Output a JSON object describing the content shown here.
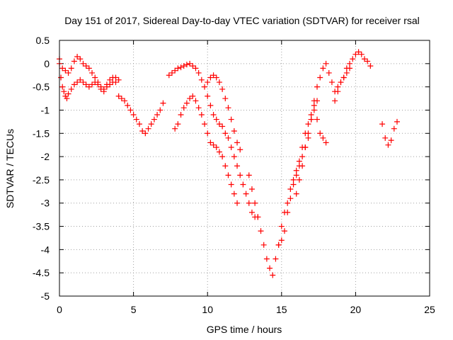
{
  "chart_data": {
    "type": "scatter",
    "title": "Day 151 of 2017, Sidereal Day-to-day VTEC variation (SDTVAR) for receiver rsal",
    "xlabel": "GPS time / hours",
    "ylabel": "SDTVAR / TECUs",
    "xlim": [
      0,
      25
    ],
    "ylim": [
      -5,
      0.5
    ],
    "xticks": [
      0,
      5,
      10,
      15,
      20,
      25
    ],
    "xtick_labels": [
      "0",
      "5",
      "10",
      "15",
      "20",
      "25"
    ],
    "yticks": [
      0.5,
      0,
      -0.5,
      -1,
      -1.5,
      -2,
      -2.5,
      -3,
      -3.5,
      -4,
      -4.5,
      -5
    ],
    "ytick_labels": [
      "0.5",
      "0",
      "-0.5",
      "-1",
      "-1.5",
      "-2",
      "-2.5",
      "-3",
      "-3.5",
      "-4",
      "-4.5",
      "-5"
    ],
    "grid": true,
    "marker": "+",
    "color": "#ff0000",
    "series": [
      {
        "x": [
          0.0,
          0.2,
          0.4,
          0.6,
          0.8,
          1.0,
          1.2,
          1.4,
          1.6,
          1.8,
          2.0,
          2.2,
          2.4,
          2.6,
          2.8,
          3.0,
          3.2,
          3.4,
          3.6,
          3.8,
          4.0,
          4.2,
          4.4,
          4.6,
          4.8,
          5.0,
          5.2,
          5.4,
          5.6,
          5.8,
          6.0,
          6.2,
          6.4,
          6.6,
          6.8,
          7.0
        ],
        "y": [
          0.1,
          -0.1,
          -0.15,
          -0.2,
          -0.1,
          0.05,
          0.15,
          0.1,
          0.0,
          -0.05,
          -0.1,
          -0.2,
          -0.3,
          -0.4,
          -0.5,
          -0.55,
          -0.45,
          -0.35,
          -0.3,
          -0.4,
          -0.7,
          -0.75,
          -0.8,
          -0.9,
          -1.0,
          -1.1,
          -1.2,
          -1.3,
          -1.45,
          -1.5,
          -1.4,
          -1.3,
          -1.2,
          -1.1,
          -1.0,
          -0.85
        ]
      },
      {
        "x": [
          0.0,
          0.1,
          0.2,
          0.3,
          0.4,
          0.5,
          0.6,
          0.8,
          1.0,
          1.2,
          1.4,
          1.6,
          1.8,
          2.0,
          2.2,
          2.4,
          2.6,
          2.8,
          3.0,
          3.2,
          3.4,
          3.6,
          3.8,
          4.0
        ],
        "y": [
          0.0,
          -0.3,
          -0.5,
          -0.6,
          -0.7,
          -0.75,
          -0.65,
          -0.55,
          -0.45,
          -0.4,
          -0.35,
          -0.4,
          -0.45,
          -0.5,
          -0.45,
          -0.4,
          -0.45,
          -0.55,
          -0.6,
          -0.5,
          -0.45,
          -0.4,
          -0.3,
          -0.35
        ]
      },
      {
        "x": [
          7.4,
          7.6,
          7.8,
          8.0,
          8.2,
          8.4,
          8.6,
          8.8,
          9.0,
          9.2,
          9.4,
          9.6,
          9.8,
          10.0,
          10.2,
          10.4,
          10.6,
          10.8,
          11.0,
          11.2,
          11.4,
          11.6,
          11.8,
          12.0,
          12.2,
          12.4,
          12.6,
          12.8,
          13.0,
          13.2,
          13.4
        ],
        "y": [
          -0.25,
          -0.2,
          -0.15,
          -0.1,
          -0.08,
          -0.05,
          -0.02,
          0.0,
          -0.05,
          -0.1,
          -0.2,
          -0.35,
          -0.5,
          -0.7,
          -0.9,
          -1.1,
          -1.2,
          -1.3,
          -1.35,
          -1.5,
          -1.6,
          -1.8,
          -2.0,
          -2.2,
          -2.4,
          -2.6,
          -2.8,
          -3.0,
          -3.2,
          -3.3,
          -3.3
        ]
      },
      {
        "x": [
          7.8,
          8.0,
          8.2,
          8.4,
          8.6,
          8.8,
          9.0,
          9.2,
          9.4,
          9.6,
          9.8,
          10.0,
          10.2,
          10.4,
          10.6,
          10.8,
          11.0,
          11.2,
          11.4,
          11.6,
          11.8,
          12.0
        ],
        "y": [
          -1.4,
          -1.3,
          -1.1,
          -0.95,
          -0.85,
          -0.75,
          -0.7,
          -0.8,
          -0.95,
          -1.1,
          -1.3,
          -1.5,
          -1.7,
          -1.75,
          -1.8,
          -1.9,
          -2.0,
          -2.2,
          -2.4,
          -2.6,
          -2.8,
          -3.0
        ]
      },
      {
        "x": [
          10.0,
          10.2,
          10.4,
          10.6,
          10.8,
          11.0,
          11.2,
          11.4,
          11.6,
          11.8,
          12.0,
          12.2
        ],
        "y": [
          -0.4,
          -0.3,
          -0.25,
          -0.3,
          -0.4,
          -0.55,
          -0.75,
          -0.95,
          -1.2,
          -1.45,
          -1.7,
          -1.85
        ]
      },
      {
        "x": [
          12.8,
          13.0,
          13.2,
          13.4,
          13.6,
          13.8,
          14.0,
          14.2,
          14.4,
          14.6,
          14.8,
          15.0,
          15.2,
          15.4,
          15.6,
          15.8,
          16.0,
          16.2,
          16.4,
          16.6,
          16.8,
          17.0,
          17.2,
          17.4
        ],
        "y": [
          -2.4,
          -2.7,
          -3.0,
          -3.3,
          -3.6,
          -3.9,
          -4.2,
          -4.4,
          -4.55,
          -4.2,
          -3.9,
          -3.8,
          -3.6,
          -3.2,
          -2.9,
          -2.6,
          -2.3,
          -2.1,
          -1.8,
          -1.5,
          -1.3,
          -1.1,
          -1.0,
          -0.8
        ]
      },
      {
        "x": [
          14.8,
          15.0,
          15.2,
          15.4,
          15.6,
          15.8,
          16.0,
          16.2,
          16.4,
          16.6,
          16.8,
          17.0,
          17.2,
          17.4,
          17.6,
          17.8,
          18.0
        ],
        "y": [
          -3.9,
          -3.5,
          -3.2,
          -3.0,
          -2.7,
          -2.5,
          -2.4,
          -2.2,
          -2.0,
          -1.8,
          -1.6,
          -1.2,
          -0.9,
          -1.2,
          -1.5,
          -1.6,
          -1.7
        ]
      },
      {
        "x": [
          16.0,
          16.2,
          16.4,
          16.6,
          16.8,
          17.0,
          17.2,
          17.4,
          17.6,
          17.8,
          18.0,
          18.2,
          18.4,
          18.6,
          18.8,
          19.0,
          19.2,
          19.4,
          19.6,
          19.8,
          20.0,
          20.2,
          20.4,
          20.6,
          20.8,
          21.0
        ],
        "y": [
          -2.8,
          -2.5,
          -2.2,
          -1.8,
          -1.5,
          -1.2,
          -0.8,
          -0.5,
          -0.3,
          -0.1,
          0.0,
          -0.2,
          -0.4,
          -0.6,
          -0.5,
          -0.4,
          -0.3,
          -0.1,
          0.0,
          0.1,
          0.2,
          0.25,
          0.2,
          0.1,
          0.05,
          -0.05
        ]
      },
      {
        "x": [
          18.6,
          18.8,
          19.0,
          19.2,
          19.4,
          19.6
        ],
        "y": [
          -0.8,
          -0.6,
          -0.4,
          -0.3,
          -0.2,
          -0.1
        ]
      },
      {
        "x": [
          21.8,
          22.0,
          22.2,
          22.4,
          22.6,
          22.8
        ],
        "y": [
          -1.3,
          -1.6,
          -1.75,
          -1.65,
          -1.4,
          -1.25
        ]
      }
    ]
  }
}
